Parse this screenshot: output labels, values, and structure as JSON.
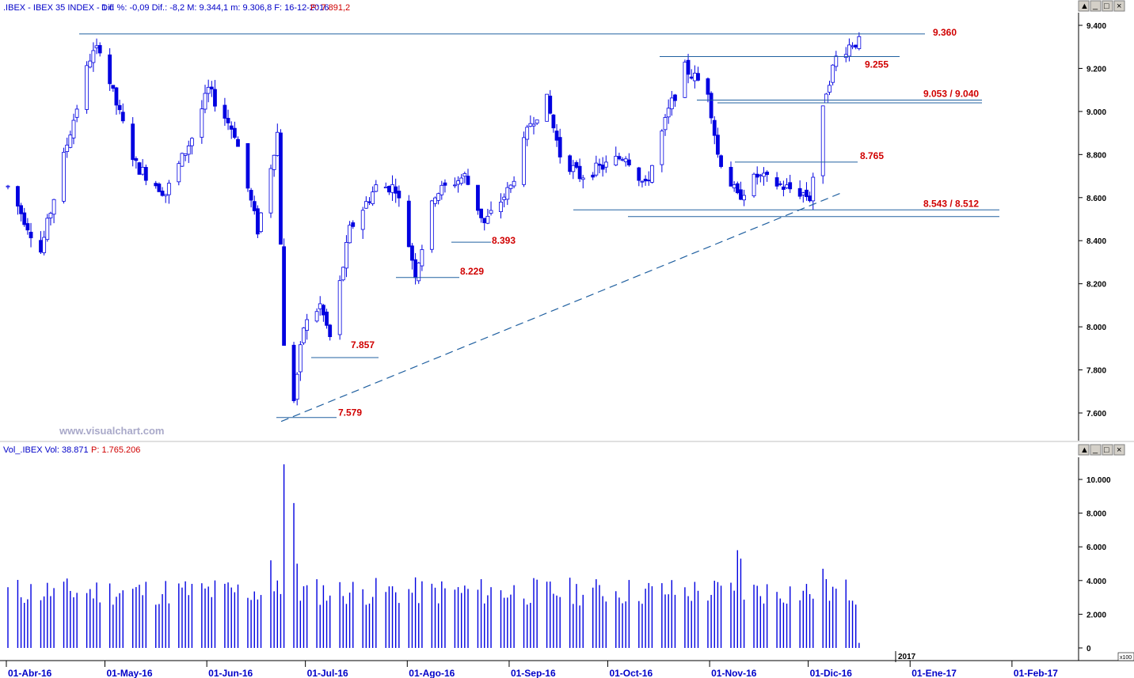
{
  "price_panel": {
    "symbol": ".IBEX - IBEX 35 INDEX - 1 d",
    "stats": "Dif. %: -0,09  Dif.: -8,2  M: 9.344,1  m: 9.306,8  F: 16-12-2016",
    "p_value": "P: 7.891,2",
    "buttons": [
      "▲",
      "_",
      "□",
      "×"
    ]
  },
  "volume_panel": {
    "title": "Vol_.IBEX  Vol: 38.871",
    "p_value": "P: 1.765.206",
    "buttons": [
      "▲",
      "_",
      "□",
      "×"
    ],
    "scale_unit": "x100"
  },
  "watermark": "www.visualchart.com",
  "year_marker": "2017",
  "colors": {
    "candle": "#0000e0",
    "line": "#2060a0",
    "label": "#d00000",
    "axis_text": "#0000c8",
    "panel_bg": "#ffffff",
    "axis_bg": "#ffffff"
  },
  "chart_data": [
    {
      "type": "candlestick",
      "ylim": [
        7450,
        9440
      ],
      "y_ticks": [
        "9.400",
        "9.200",
        "9.000",
        "8.800",
        "8.600",
        "8.400",
        "8.200",
        "8.000",
        "7.800",
        "7.600"
      ],
      "x_labels": [
        "01-Abr-16",
        "01-May-16",
        "01-Jun-16",
        "01-Jul-16",
        "01-Ago-16",
        "01-Sep-16",
        "01-Oct-16",
        "01-Nov-16",
        "01-Dic-16",
        "01-Ene-17",
        "01-Feb-17"
      ],
      "levels": [
        {
          "label": "9.360",
          "value": 9360
        },
        {
          "label": "9.255",
          "value": 9255
        },
        {
          "label": "9.053 / 9.040",
          "values": [
            9053,
            9040
          ]
        },
        {
          "label": "8.765",
          "value": 8765
        },
        {
          "label": "8.543 / 8.512",
          "values": [
            8543,
            8512
          ]
        },
        {
          "label": "8.393",
          "value": 8393
        },
        {
          "label": "8.229",
          "value": 8229
        },
        {
          "label": "7.857",
          "value": 7857
        },
        {
          "label": "7.579",
          "value": 7579
        }
      ],
      "trendline": {
        "from": [
          "2016-06-27",
          7579
        ],
        "to": [
          "2016-12-01",
          8590
        ],
        "style": "dashed"
      },
      "anchors": [
        [
          "2016-04-01",
          8650
        ],
        [
          "2016-04-11",
          8350
        ],
        [
          "2016-04-19",
          8850
        ],
        [
          "2016-04-26",
          9250
        ],
        [
          "2016-04-29",
          9300
        ],
        [
          "2016-05-03",
          9080
        ],
        [
          "2016-05-10",
          8750
        ],
        [
          "2016-05-19",
          8620
        ],
        [
          "2016-05-27",
          8880
        ],
        [
          "2016-06-01",
          9100
        ],
        [
          "2016-06-09",
          8900
        ],
        [
          "2016-06-16",
          8450
        ],
        [
          "2016-06-22",
          8900
        ],
        [
          "2016-06-24",
          7900
        ],
        [
          "2016-06-27",
          7670
        ],
        [
          "2016-06-30",
          8000
        ],
        [
          "2016-07-05",
          8100
        ],
        [
          "2016-07-08",
          7950
        ],
        [
          "2016-07-14",
          8450
        ],
        [
          "2016-07-22",
          8650
        ],
        [
          "2016-07-28",
          8650
        ],
        [
          "2016-08-03",
          8250
        ],
        [
          "2016-08-09",
          8620
        ],
        [
          "2016-08-18",
          8700
        ],
        [
          "2016-08-24",
          8480
        ],
        [
          "2016-09-01",
          8650
        ],
        [
          "2016-09-07",
          8950
        ],
        [
          "2016-09-12",
          9050
        ],
        [
          "2016-09-16",
          8800
        ],
        [
          "2016-09-22",
          8700
        ],
        [
          "2016-09-30",
          8750
        ],
        [
          "2016-10-06",
          8800
        ],
        [
          "2016-10-12",
          8650
        ],
        [
          "2016-10-19",
          9000
        ],
        [
          "2016-10-24",
          9200
        ],
        [
          "2016-10-31",
          9100
        ],
        [
          "2016-11-03",
          8800
        ],
        [
          "2016-11-09",
          8600
        ],
        [
          "2016-11-15",
          8700
        ],
        [
          "2016-11-23",
          8650
        ],
        [
          "2016-11-29",
          8620
        ],
        [
          "2016-12-01",
          8600
        ],
        [
          "2016-12-06",
          9100
        ],
        [
          "2016-12-09",
          9250
        ],
        [
          "2016-12-14",
          9320
        ],
        [
          "2016-12-16",
          9320
        ]
      ]
    },
    {
      "type": "bar",
      "name": "Volume",
      "ylim": [
        0,
        11000
      ],
      "y_ticks": [
        "10.000",
        "8.000",
        "6.000",
        "4.000",
        "2.000",
        "0"
      ],
      "spikes": [
        [
          "2016-06-24",
          10900
        ],
        [
          "2016-06-27",
          8600
        ],
        [
          "2016-06-20",
          5200
        ],
        [
          "2016-06-28",
          5000
        ],
        [
          "2016-11-09",
          5800
        ],
        [
          "2016-11-10",
          5300
        ],
        [
          "2016-12-05",
          4700
        ],
        [
          "2016-12-16",
          300
        ]
      ]
    }
  ]
}
